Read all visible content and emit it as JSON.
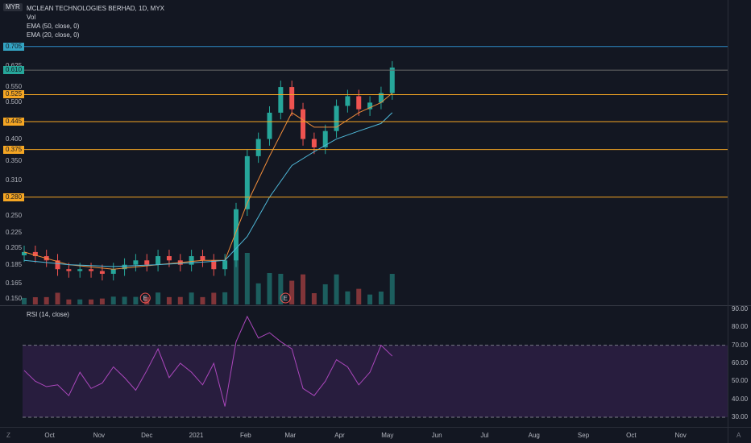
{
  "header": {
    "symbol_title": "MCLEAN TECHNOLOGIES BERHAD, 1D, MYX",
    "vol_label": "Vol",
    "ema50_label": "EMA (50, close, 0)",
    "ema20_label": "EMA (20, close, 0)",
    "currency_badge": "MYR",
    "rsi_label": "RSI (14, close)"
  },
  "bottom": {
    "left_icon_label": "Z",
    "right_icon_label": "A"
  },
  "colors": {
    "background": "#131722",
    "up_candle": "#26a69a",
    "down_candle": "#ef5350",
    "hline": "#f5a623",
    "ema50": "#4fb8d8",
    "ema20": "#f08c3a",
    "rsi_line": "#ab47bc",
    "rsi_band": "#3b2256",
    "peak_line": "#2c8ac6"
  },
  "chart_data": [
    {
      "type": "line",
      "title": "MCLEAN TECHNOLOGIES BERHAD, 1D, MYX",
      "ylabel": "MYR",
      "yscale": "log",
      "ylim": [
        0.145,
        0.74
      ],
      "ticks": [
        "0.150",
        "0.165",
        "0.185",
        "0.205",
        "0.225",
        "0.250",
        "0.280",
        "0.310",
        "0.350",
        "0.375",
        "0.400",
        "0.445",
        "0.500",
        "0.525",
        "0.550",
        "0.610",
        "0.625",
        "0.705"
      ],
      "x_tick_labels": [
        "Oct",
        "Nov",
        "Dec",
        "2021",
        "Feb",
        "Mar",
        "Apr",
        "May",
        "Jun",
        "Jul",
        "Aug",
        "Sep",
        "Oct",
        "Nov"
      ],
      "horizontal_levels": [
        {
          "value": "0.705",
          "color": "#2c8ac6",
          "badge": "#33a3c2"
        },
        {
          "value": "0.610",
          "color": "#666666",
          "badge": "#26a69a"
        },
        {
          "value": "0.525",
          "color": "#f5a623",
          "badge": "#f5a623"
        },
        {
          "value": "0.445",
          "color": "#f5a623",
          "badge": "#f5a623"
        },
        {
          "value": "0.375",
          "color": "#f5a623",
          "badge": "#f5a623"
        },
        {
          "value": "0.280",
          "color": "#f5a623",
          "badge": "#f5a623"
        }
      ],
      "earnings_markers": [
        {
          "date": "2020-11-30",
          "label": "E"
        },
        {
          "date": "2021-02-26",
          "label": "E"
        }
      ],
      "series": [
        {
          "name": "Close",
          "x": [
            "2020-09-15",
            "2020-09-22",
            "2020-09-29",
            "2020-10-06",
            "2020-10-13",
            "2020-10-20",
            "2020-10-27",
            "2020-11-03",
            "2020-11-10",
            "2020-11-17",
            "2020-11-24",
            "2020-12-01",
            "2020-12-08",
            "2020-12-15",
            "2020-12-22",
            "2020-12-29",
            "2021-01-05",
            "2021-01-12",
            "2021-01-19",
            "2021-01-26",
            "2021-02-02",
            "2021-02-09",
            "2021-02-16",
            "2021-02-23",
            "2021-03-02",
            "2021-03-09",
            "2021-03-16",
            "2021-03-23",
            "2021-03-30",
            "2021-04-06",
            "2021-04-13",
            "2021-04-20",
            "2021-04-27",
            "2021-05-04"
          ],
          "values": [
            0.2,
            0.195,
            0.19,
            0.18,
            0.178,
            0.18,
            0.178,
            0.175,
            0.18,
            0.185,
            0.19,
            0.185,
            0.195,
            0.19,
            0.185,
            0.195,
            0.19,
            0.18,
            0.19,
            0.26,
            0.36,
            0.4,
            0.47,
            0.55,
            0.48,
            0.4,
            0.38,
            0.42,
            0.49,
            0.52,
            0.48,
            0.5,
            0.53,
            0.62
          ]
        },
        {
          "name": "EMA (20, close, 0)",
          "x": [
            "2020-09-15",
            "2020-10-13",
            "2020-11-10",
            "2020-12-08",
            "2021-01-05",
            "2021-01-19",
            "2021-02-02",
            "2021-02-16",
            "2021-03-02",
            "2021-03-16",
            "2021-03-30",
            "2021-04-13",
            "2021-04-27",
            "2021-05-04"
          ],
          "values": [
            0.2,
            0.185,
            0.18,
            0.185,
            0.19,
            0.19,
            0.27,
            0.36,
            0.47,
            0.43,
            0.43,
            0.47,
            0.5,
            0.53
          ]
        },
        {
          "name": "EMA (50, close, 0)",
          "x": [
            "2020-09-15",
            "2020-10-13",
            "2020-11-10",
            "2020-12-08",
            "2021-01-05",
            "2021-01-19",
            "2021-02-02",
            "2021-02-16",
            "2021-03-02",
            "2021-03-16",
            "2021-03-30",
            "2021-04-13",
            "2021-04-27",
            "2021-05-04"
          ],
          "values": [
            0.19,
            0.185,
            0.183,
            0.185,
            0.188,
            0.19,
            0.22,
            0.28,
            0.34,
            0.37,
            0.4,
            0.42,
            0.44,
            0.47
          ]
        }
      ]
    },
    {
      "type": "line",
      "title": "RSI (14, close)",
      "ylim": [
        25,
        90
      ],
      "ticks": [
        "90.00",
        "80.00",
        "70.00",
        "60.00",
        "50.00",
        "40.00",
        "30.00"
      ],
      "bands": [
        30,
        70
      ],
      "series": [
        {
          "name": "RSI (14, close)",
          "x": [
            "2020-09-15",
            "2020-09-22",
            "2020-09-29",
            "2020-10-06",
            "2020-10-13",
            "2020-10-20",
            "2020-10-27",
            "2020-11-03",
            "2020-11-10",
            "2020-11-17",
            "2020-11-24",
            "2020-12-01",
            "2020-12-08",
            "2020-12-15",
            "2020-12-22",
            "2020-12-29",
            "2021-01-05",
            "2021-01-12",
            "2021-01-19",
            "2021-01-26",
            "2021-02-02",
            "2021-02-09",
            "2021-02-16",
            "2021-02-23",
            "2021-03-02",
            "2021-03-09",
            "2021-03-16",
            "2021-03-23",
            "2021-03-30",
            "2021-04-06",
            "2021-04-13",
            "2021-04-20",
            "2021-04-27",
            "2021-05-04"
          ],
          "values": [
            56,
            50,
            47,
            48,
            42,
            55,
            46,
            49,
            58,
            52,
            45,
            56,
            68,
            52,
            60,
            55,
            48,
            60,
            36,
            72,
            86,
            74,
            77,
            72,
            68,
            46,
            42,
            50,
            62,
            58,
            48,
            55,
            70,
            64
          ]
        }
      ]
    }
  ]
}
